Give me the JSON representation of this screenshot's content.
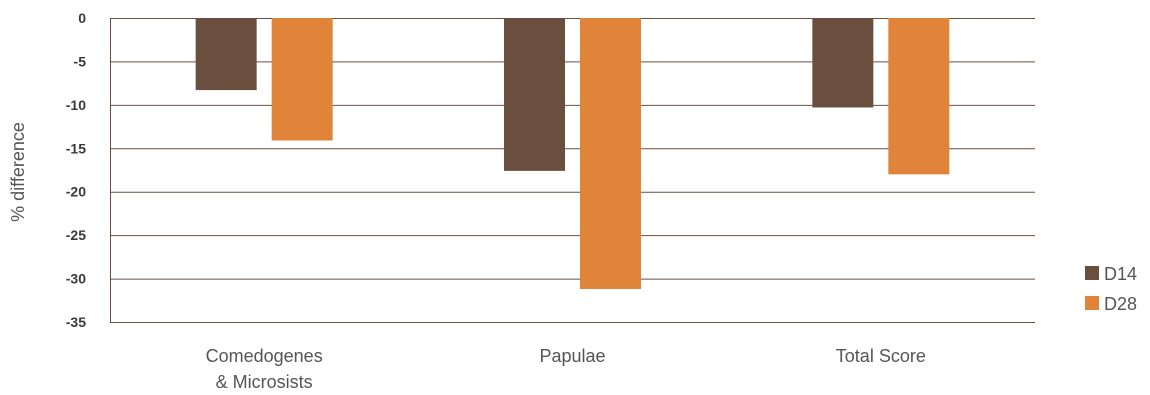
{
  "chart_data": {
    "type": "bar",
    "categories": [
      "Comedogenes & Microsists",
      "Papulae",
      "Total Score"
    ],
    "category_lines": [
      [
        "Comedogenes",
        "& Microsists"
      ],
      [
        "Papulae"
      ],
      [
        "Total Score"
      ]
    ],
    "series": [
      {
        "name": "D14",
        "color": "#6b4f3e",
        "values": [
          -8.3,
          -17.6,
          -10.3
        ]
      },
      {
        "name": "D28",
        "color": "#e0843a",
        "values": [
          -14.1,
          -31.2,
          -18.0
        ]
      }
    ],
    "ylabel": "% difference",
    "ylim": [
      -35,
      0
    ],
    "yticks": [
      0,
      -5,
      -10,
      -15,
      -20,
      -25,
      -30,
      -35
    ],
    "grid": true,
    "legend": "right"
  }
}
